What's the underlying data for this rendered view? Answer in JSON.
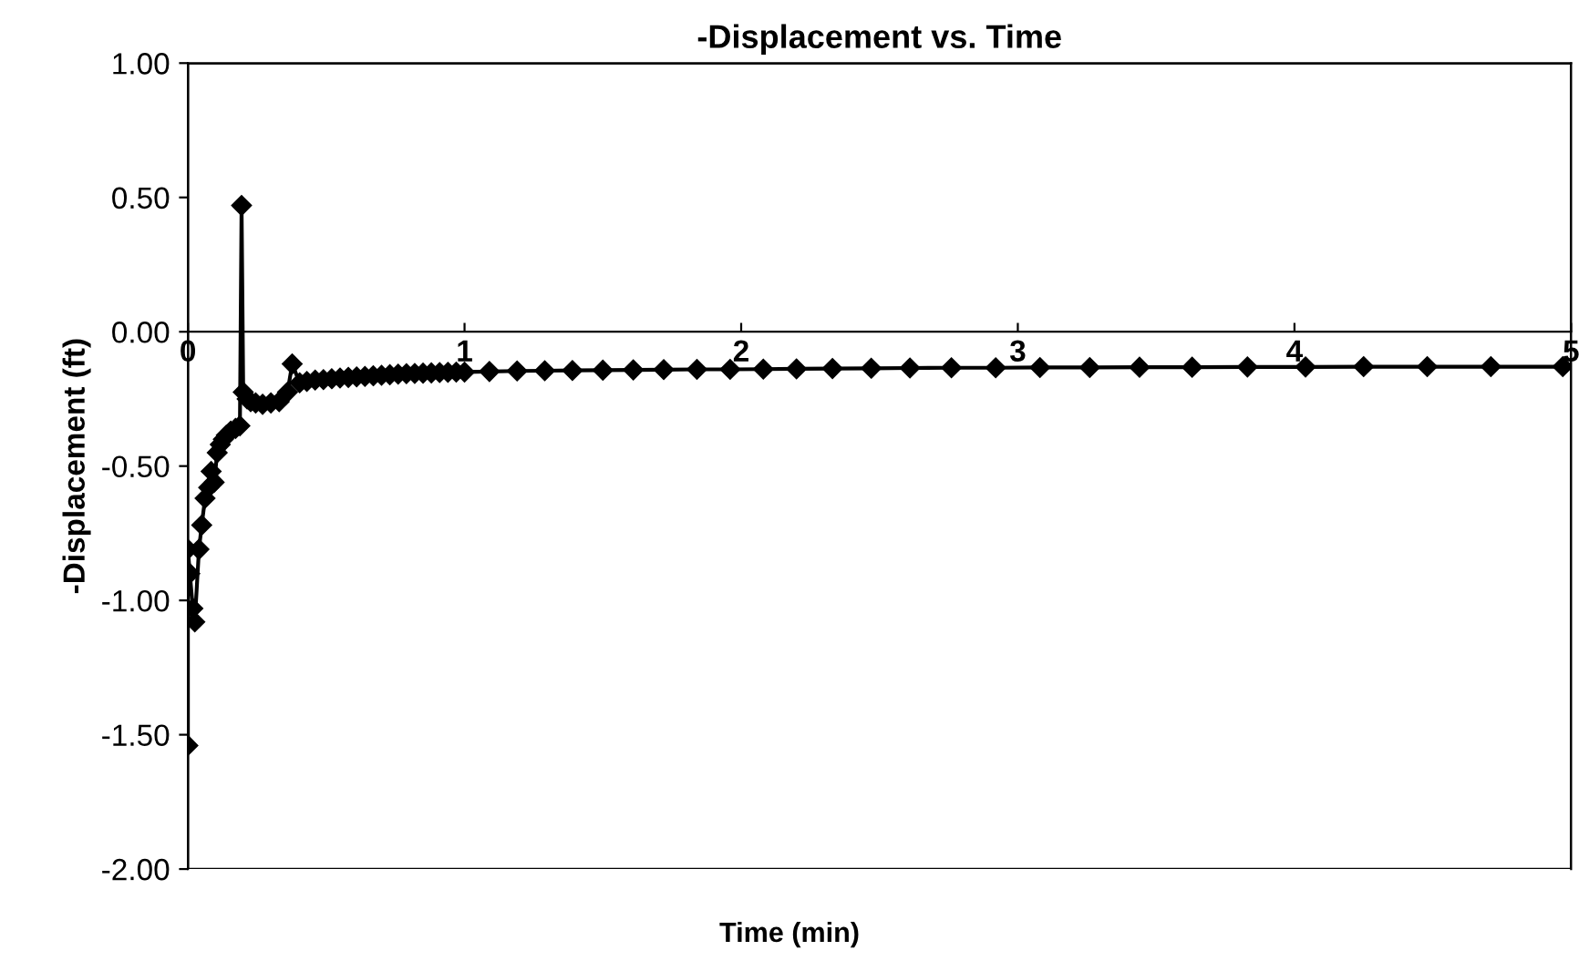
{
  "chart_data": {
    "type": "line",
    "title": "-Displacement vs. Time",
    "xlabel": "Time (min)",
    "ylabel": "-Displacement (ft)",
    "x": [
      0,
      0.0,
      0.007,
      0.018,
      0.025,
      0.04,
      0.05,
      0.062,
      0.075,
      0.084,
      0.095,
      0.106,
      0.117,
      0.128,
      0.139,
      0.155,
      0.172,
      0.188,
      0.194,
      0.2,
      0.214,
      0.227,
      0.245,
      0.27,
      0.3,
      0.33,
      0.36,
      0.377,
      0.404,
      0.43,
      0.46,
      0.49,
      0.52,
      0.55,
      0.58,
      0.61,
      0.64,
      0.67,
      0.7,
      0.73,
      0.76,
      0.79,
      0.82,
      0.85,
      0.88,
      0.91,
      0.94,
      0.97,
      1.0,
      1.09,
      1.19,
      1.29,
      1.39,
      1.5,
      1.61,
      1.72,
      1.84,
      1.96,
      2.08,
      2.2,
      2.33,
      2.47,
      2.61,
      2.76,
      2.92,
      3.08,
      3.26,
      3.44,
      3.63,
      3.83,
      4.04,
      4.25,
      4.48,
      4.71,
      4.97
    ],
    "values": [
      -1.54,
      -0.81,
      -0.9,
      -1.03,
      -1.08,
      -0.81,
      -0.72,
      -0.62,
      -0.58,
      -0.52,
      -0.56,
      -0.45,
      -0.42,
      -0.4,
      -0.385,
      -0.37,
      -0.36,
      -0.35,
      0.47,
      -0.225,
      -0.25,
      -0.26,
      -0.265,
      -0.27,
      -0.265,
      -0.26,
      -0.225,
      -0.12,
      -0.19,
      -0.185,
      -0.18,
      -0.178,
      -0.175,
      -0.172,
      -0.17,
      -0.168,
      -0.166,
      -0.164,
      -0.162,
      -0.16,
      -0.158,
      -0.156,
      -0.155,
      -0.154,
      -0.153,
      -0.152,
      -0.151,
      -0.15,
      -0.15,
      -0.148,
      -0.146,
      -0.145,
      -0.144,
      -0.143,
      -0.142,
      -0.141,
      -0.14,
      -0.14,
      -0.139,
      -0.138,
      -0.137,
      -0.136,
      -0.135,
      -0.134,
      -0.134,
      -0.133,
      -0.133,
      -0.132,
      -0.132,
      -0.131,
      -0.131,
      -0.13,
      -0.13,
      -0.13,
      -0.13
    ],
    "color": "#000000",
    "marker": "diamond",
    "line_style": "solid",
    "grid": false,
    "legend": false,
    "xlim": [
      0,
      5
    ],
    "xticks": [
      0,
      1,
      2,
      3,
      4,
      5
    ],
    "ylim": [
      -2,
      1
    ],
    "yticks": [
      {
        "value": 1,
        "label": "1.00"
      },
      {
        "value": 0.5,
        "label": "0.50"
      },
      {
        "value": 0,
        "label": "0.00"
      },
      {
        "value": -0.5,
        "label": "-0.50"
      },
      {
        "value": -1,
        "label": "-1.00"
      },
      {
        "value": -1.5,
        "label": "-1.50"
      },
      {
        "value": -2,
        "label": "-2.00"
      }
    ]
  }
}
